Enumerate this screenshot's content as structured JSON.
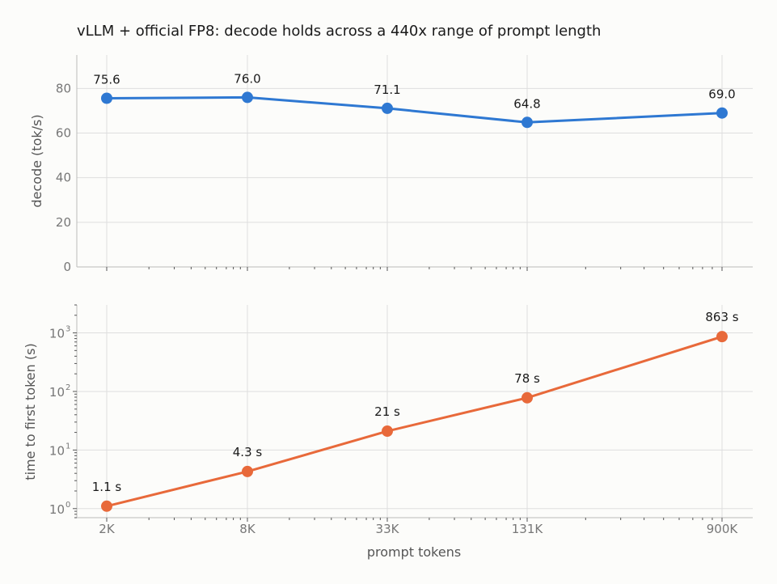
{
  "title": "vLLM + official FP8: decode holds across a 440x range of prompt length",
  "chart_data": [
    {
      "type": "line",
      "x": [
        2000,
        8000,
        33000,
        131000,
        900000
      ],
      "x_tick_labels": [
        "2K",
        "8K",
        "33K",
        "131K",
        "900K"
      ],
      "x_scale": "log",
      "ylabel": "decode (tok/s)",
      "ylim": [
        0,
        95
      ],
      "y_ticks": [
        0,
        20,
        40,
        60,
        80
      ],
      "grid": true,
      "color": "#2e78d2",
      "values": [
        75.6,
        76.0,
        71.1,
        64.8,
        69.0
      ],
      "data_labels": [
        "75.6",
        "76.0",
        "71.1",
        "64.8",
        "69.0"
      ]
    },
    {
      "type": "line",
      "x": [
        2000,
        8000,
        33000,
        131000,
        900000
      ],
      "x_tick_labels": [
        "2K",
        "8K",
        "33K",
        "131K",
        "900K"
      ],
      "x_scale": "log",
      "xlabel": "prompt tokens",
      "ylabel": "time to first token (s)",
      "y_scale": "log",
      "ylim": [
        0.7,
        3000
      ],
      "y_ticks": [
        1,
        10,
        100,
        1000
      ],
      "y_tick_base": "10",
      "y_tick_exponents": [
        "0",
        "1",
        "2",
        "3"
      ],
      "grid": true,
      "color": "#e8693a",
      "values": [
        1.1,
        4.3,
        21,
        78,
        863
      ],
      "data_labels": [
        "1.1 s",
        "4.3 s",
        "21 s",
        "78 s",
        "863 s"
      ]
    }
  ]
}
